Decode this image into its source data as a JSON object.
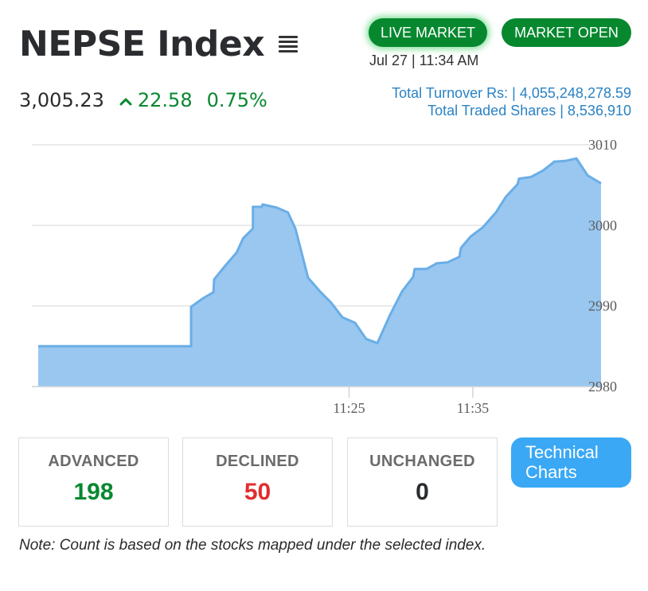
{
  "header": {
    "title": "NEPSE Index",
    "menu_icon": "hamburger-menu-icon",
    "live_market_label": "LIVE MARKET",
    "market_open_label": "MARKET OPEN",
    "timestamp": "Jul 27 | 11:34 AM"
  },
  "stats": {
    "index_value": "3,005.23",
    "change_icon": "caret-up-icon",
    "change_value": "22.58",
    "change_percent": "0.75%"
  },
  "turnover": {
    "total_turnover": "Total Turnover Rs: | 4,055,248,278.59",
    "total_traded_shares": "Total Traded Shares | 8,536,910"
  },
  "colors": {
    "green": "#07882f",
    "red": "#e02e2e",
    "blue_link": "#2a82c4",
    "area_fill": "#99c7f0",
    "area_line": "#6aaee6",
    "button_blue": "#3aa8f5"
  },
  "chart_data": {
    "type": "area",
    "title": "",
    "xlabel": "",
    "ylabel": "",
    "ylim": [
      2980,
      3010
    ],
    "yticks": [
      "3010",
      "3000",
      "2990",
      "2980"
    ],
    "xticks": [
      {
        "label": "11:25",
        "x": 11.417
      },
      {
        "label": "11:35",
        "x": 11.583
      }
    ],
    "grid": true,
    "x": [
      11.0,
      11.205,
      11.205,
      11.222,
      11.235,
      11.236,
      11.251,
      11.264,
      11.266,
      11.275,
      11.288,
      11.288,
      11.3,
      11.301,
      11.32,
      11.335,
      11.345,
      11.362,
      11.378,
      11.393,
      11.408,
      11.425,
      11.44,
      11.455,
      11.472,
      11.488,
      11.503,
      11.505,
      11.521,
      11.533,
      11.534,
      11.549,
      11.565,
      11.567,
      11.58,
      11.597,
      11.612,
      11.614,
      11.627,
      11.643,
      11.645,
      11.661,
      11.677,
      11.691,
      11.692,
      11.707,
      11.722,
      11.737,
      11.755
    ],
    "y": [
      2985.0,
      2985.0,
      2989.9,
      2991.0,
      2991.7,
      2993.3,
      2995.0,
      2996.4,
      2996.6,
      2998.4,
      2999.6,
      3002.3,
      3002.3,
      3002.6,
      3002.2,
      3001.6,
      2999.6,
      2993.5,
      2991.8,
      2990.4,
      2988.6,
      2987.9,
      2985.9,
      2985.4,
      2988.9,
      2991.8,
      2993.6,
      2994.6,
      2994.6,
      2995.2,
      2995.3,
      2995.4,
      2996.1,
      2997.2,
      2998.6,
      2999.8,
      3001.4,
      3001.6,
      3003.5,
      3005.1,
      3005.8,
      3006.0,
      3006.8,
      3007.8,
      3007.9,
      3008.0,
      3008.3,
      3006.2,
      3005.2
    ]
  },
  "breadth": {
    "advanced_label": "ADVANCED",
    "advanced_value": "198",
    "declined_label": "DECLINED",
    "declined_value": "50",
    "unchanged_label": "UNCHANGED",
    "unchanged_value": "0"
  },
  "buttons": {
    "technical_line1": "Technical",
    "technical_line2": "Charts"
  },
  "note": "Note: Count is based on the stocks mapped under the selected index."
}
